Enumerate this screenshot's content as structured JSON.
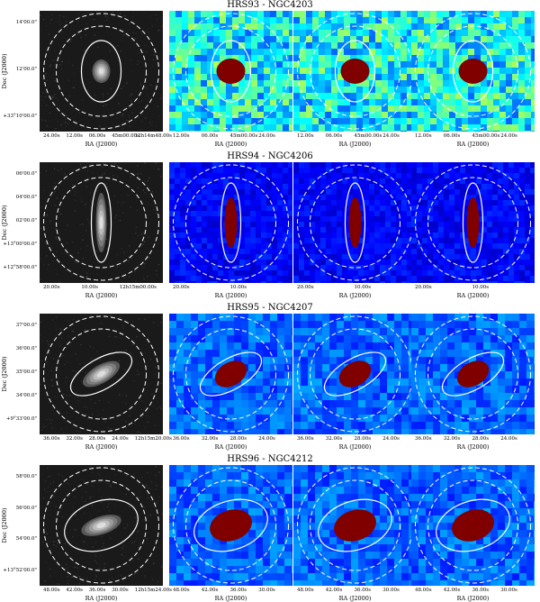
{
  "rows": [
    {
      "title": "HRS93 - NGC4203",
      "yticks": [
        "14'00.0\"",
        "12'00.0\"",
        "+33°10'00.0\""
      ],
      "ylabel": "Dec (J2000)",
      "xticks_optical": [
        "24.00s",
        "12.00s",
        "06.00s",
        "45m00.00s",
        "12h14m48.00s"
      ],
      "xticks_other": [
        "12.00s",
        "06.00s",
        "45m00.00s",
        "24.00s"
      ],
      "xlabel": "RA (J2000)",
      "colormap": "noisy",
      "ellipse": "round"
    },
    {
      "title": "HRS94 - NGC4206",
      "yticks": [
        "06'00.0\"",
        "04'00.0\"",
        "02'00.0\"",
        "+13°00'00.0\"",
        "+12°58'00.0\""
      ],
      "ylabel": "Dec (J2000)",
      "xticks_optical": [
        "20.00s",
        "10.00s",
        "12h15m00.00s"
      ],
      "xticks_other": [
        "20.00s",
        "10.00s"
      ],
      "xlabel": "RA (J2000)",
      "colormap": "blue",
      "ellipse": "edge"
    },
    {
      "title": "HRS95 - NGC4207",
      "yticks": [
        "37'00.0\"",
        "36'00.0\"",
        "35'00.0\"",
        "34'00.0\"",
        "+9°33'00.0\""
      ],
      "ylabel": "Dec (J2000)",
      "xticks_optical": [
        "36.00s",
        "32.00s",
        "28.00s",
        "24.00s",
        "12h15m20.00s"
      ],
      "xticks_other": [
        "36.00s",
        "32.00s",
        "28.00s",
        "24.00s"
      ],
      "xlabel": "RA (J2000)",
      "colormap": "mid",
      "ellipse": "tilted"
    },
    {
      "title": "HRS96 - NGC4212",
      "yticks": [
        "58'00.0\"",
        "56'00.0\"",
        "54'00.0\"",
        "+13°52'00.0\""
      ],
      "ylabel": "Dec (J2000)",
      "xticks_optical": [
        "48.00s",
        "42.00s",
        "36.00s",
        "30.00s",
        "12h15m24.00s"
      ],
      "xticks_other": [
        "48.00s",
        "42.00s",
        "36.00s",
        "30.00s"
      ],
      "xlabel": "RA (J2000)",
      "colormap": "mid",
      "ellipse": "wide"
    }
  ]
}
